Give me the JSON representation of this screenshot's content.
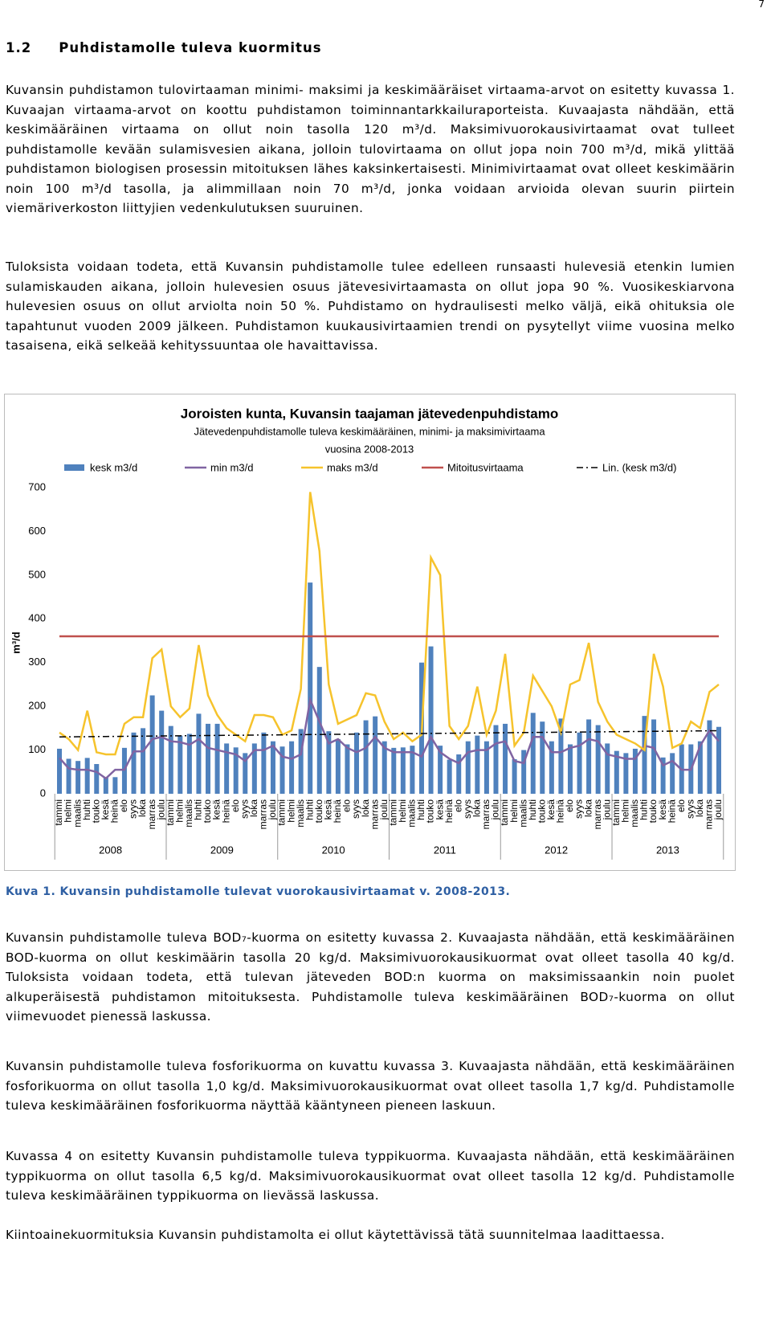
{
  "page_number": "7",
  "heading": {
    "number": "1.2",
    "title": "Puhdistamolle tuleva kuormitus"
  },
  "paragraphs": [
    "Kuvansin puhdistamon tulovirtaaman minimi- maksimi ja keskimääräiset virtaama-arvot on esitetty kuvassa 1. Kuvaajan virtaama-arvot on koottu puhdistamon toiminnantarkkailuraporteista. Kuvaajasta nähdään, että keskimääräinen virtaama on ollut noin tasolla 120 m³/d. Maksimivuorokausivirtaamat ovat tulleet puhdistamolle kevään sulamisvesien aikana, jolloin tulovirtaama on ollut jopa noin 700 m³/d, mikä ylittää puhdistamon biologisen prosessin mitoituksen lähes kaksinkertaisesti. Minimivirtaamat ovat olleet keskimäärin noin 100 m³/d tasolla, ja alimmillaan noin 70 m³/d, jonka voidaan arvioida olevan suurin piirtein viemäriverkoston liittyjien vedenkulutuksen suuruinen.",
    "Tuloksista voidaan todeta, että Kuvansin puhdistamolle tulee edelleen runsaasti hulevesiä etenkin lumien sulamiskauden aikana, jolloin hulevesien osuus jätevesivirtaamasta on ollut jopa 90 %. Vuosikeskiarvona hulevesien osuus on ollut arviolta noin 50 %. Puhdistamo on hydraulisesti melko väljä, eikä ohituksia ole tapahtunut vuoden 2009 jälkeen. Puhdistamon kuukausivirtaamien trendi on pysytellyt viime vuosina melko tasaisena, eikä selkeää kehityssuuntaa ole havaittavissa."
  ],
  "caption": "Kuva 1. Kuvansin puhdistamolle tulevat vuorokausivirtaamat v. 2008-2013.",
  "paragraphs_after": [
    "Kuvansin puhdistamolle tuleva BOD₇-kuorma on esitetty kuvassa 2. Kuvaajasta nähdään, että keskimääräinen BOD-kuorma on ollut keskimäärin tasolla 20 kg/d. Maksimivuorokausikuormat ovat olleet tasolla 40 kg/d. Tuloksista voidaan todeta, että tulevan jäteveden BOD:n kuorma on maksimissaankin noin puolet alkuperäisestä puhdistamon mitoituksesta. Puhdistamolle tuleva keskimääräinen BOD₇-kuorma on ollut viimevuodet pienessä laskussa.",
    "Kuvansin puhdistamolle tuleva fosforikuorma on kuvattu kuvassa 3. Kuvaajasta nähdään, että keskimääräinen fosforikuorma on ollut tasolla 1,0 kg/d. Maksimivuorokausikuormat ovat olleet tasolla 1,7 kg/d. Puhdistamolle tuleva keskimääräinen fosforikuorma näyttää kääntyneen pieneen laskuun.",
    "Kuvassa 4 on esitetty Kuvansin puhdistamolle tuleva typpikuorma. Kuvaajasta nähdään, että keskimääräinen typpikuorma on ollut tasolla 6,5 kg/d. Maksimivuorokausikuormat ovat olleet tasolla 12 kg/d. Puhdistamolle tuleva keskimääräinen typpikuorma on lievässä laskussa.",
    "Kiintoainekuormituksia Kuvansin puhdistamolta ei ollut käytettävissä tätä suunnitelmaa laadittaessa."
  ],
  "chart_data": {
    "type": "bar",
    "title": "Joroisten kunta, Kuvansin taajaman jätevedenpuhdistamo",
    "subtitle": [
      "Jätevedenpuhdistamolle tuleva keskimääräinen, minimi- ja maksimivirtaama",
      "vuosina 2008-2013"
    ],
    "y_label": "m³/d",
    "ylim": [
      0,
      700
    ],
    "yticks": [
      0,
      100,
      200,
      300,
      400,
      500,
      600,
      700
    ],
    "groups": [
      "2008",
      "2009",
      "2010",
      "2011",
      "2012",
      "2013"
    ],
    "categories": [
      "tammi",
      "helmi",
      "maalis",
      "huhti",
      "touko",
      "kesä",
      "heinä",
      "elo",
      "syys",
      "loka",
      "marras",
      "joulu",
      "tammi",
      "helmi",
      "maalis",
      "huhti",
      "touko",
      "kesä",
      "heinä",
      "elo",
      "syys",
      "loka",
      "marras",
      "joulu",
      "tammi",
      "helmi",
      "maalis",
      "huhti",
      "touko",
      "kesä",
      "heinä",
      "elo",
      "syys",
      "loka",
      "marras",
      "joulu",
      "tammi",
      "helmi",
      "maalis",
      "huhti",
      "touko",
      "kesä",
      "heinä",
      "elo",
      "syys",
      "loka",
      "marras",
      "joulu",
      "tammi",
      "helmi",
      "maalis",
      "huhti",
      "touko",
      "kesä",
      "heinä",
      "elo",
      "syys",
      "loka",
      "marras",
      "joulu",
      "tammi",
      "helmi",
      "maalis",
      "huhti",
      "touko",
      "kesä",
      "heinä",
      "elo",
      "syys",
      "loka",
      "marras",
      "joulu"
    ],
    "series": [
      {
        "name": "kesk m3/d",
        "type": "bar",
        "color": "#4f81bd",
        "values": [
          103,
          80,
          75,
          82,
          68,
          38,
          38,
          105,
          140,
          150,
          225,
          190,
          155,
          133,
          137,
          183,
          160,
          160,
          115,
          106,
          93,
          115,
          140,
          120,
          108,
          120,
          148,
          483,
          290,
          143,
          125,
          113,
          140,
          168,
          177,
          120,
          105,
          106,
          110,
          300,
          337,
          110,
          78,
          90,
          120,
          133,
          120,
          157,
          160,
          79,
          100,
          185,
          165,
          120,
          172,
          113,
          140,
          170,
          157,
          115,
          98,
          93,
          103,
          178,
          170,
          83,
          93,
          113,
          113,
          120,
          168,
          153
        ]
      },
      {
        "name": "min m3/d",
        "type": "line",
        "color": "#8064a2",
        "values": [
          82,
          58,
          55,
          55,
          50,
          35,
          55,
          55,
          97,
          97,
          125,
          130,
          120,
          118,
          112,
          125,
          105,
          100,
          95,
          90,
          75,
          100,
          100,
          110,
          85,
          80,
          90,
          215,
          165,
          115,
          125,
          105,
          95,
          105,
          130,
          105,
          95,
          95,
          95,
          85,
          130,
          95,
          80,
          70,
          95,
          100,
          100,
          115,
          120,
          75,
          70,
          130,
          130,
          95,
          95,
          105,
          110,
          125,
          120,
          90,
          85,
          80,
          80,
          110,
          105,
          65,
          75,
          55,
          55,
          110,
          145,
          120
        ]
      },
      {
        "name": "maks m3/d",
        "type": "line",
        "color": "#f6c32c",
        "values": [
          140,
          125,
          100,
          190,
          95,
          90,
          90,
          160,
          175,
          175,
          310,
          330,
          200,
          175,
          195,
          340,
          225,
          180,
          150,
          135,
          120,
          180,
          180,
          175,
          135,
          145,
          240,
          690,
          555,
          250,
          160,
          170,
          180,
          230,
          225,
          165,
          125,
          140,
          120,
          135,
          540,
          500,
          155,
          125,
          155,
          245,
          135,
          190,
          320,
          110,
          140,
          270,
          235,
          200,
          140,
          250,
          260,
          345,
          210,
          165,
          135,
          125,
          115,
          100,
          320,
          245,
          105,
          115,
          165,
          150,
          233,
          250
        ]
      },
      {
        "name": "Mitoitusvirtaama",
        "type": "line",
        "color": "#c0504d",
        "values": [
          360,
          360,
          360,
          360,
          360,
          360,
          360,
          360,
          360,
          360,
          360,
          360,
          360,
          360,
          360,
          360,
          360,
          360,
          360,
          360,
          360,
          360,
          360,
          360,
          360,
          360,
          360,
          360,
          360,
          360,
          360,
          360,
          360,
          360,
          360,
          360,
          360,
          360,
          360,
          360,
          360,
          360,
          360,
          360,
          360,
          360,
          360,
          360,
          360,
          360,
          360,
          360,
          360,
          360,
          360,
          360,
          360,
          360,
          360,
          360,
          360,
          360,
          360,
          360,
          360,
          360,
          360,
          360,
          360,
          360,
          360,
          360
        ]
      },
      {
        "name": "Lin. (kesk m3/d)",
        "type": "line",
        "dash": true,
        "color": "#000000",
        "values": [
          130,
          130.2,
          130.4,
          130.6,
          130.8,
          131,
          131.2,
          131.4,
          131.6,
          131.8,
          132,
          132.2,
          132.4,
          132.6,
          132.8,
          133,
          133.2,
          133.4,
          133.6,
          133.8,
          134,
          134.2,
          134.4,
          134.6,
          134.8,
          135,
          135.2,
          135.4,
          135.6,
          135.8,
          136,
          136.2,
          136.4,
          136.6,
          136.8,
          137,
          137.2,
          137.4,
          137.6,
          137.8,
          138,
          138.2,
          138.4,
          138.6,
          138.8,
          139,
          139.2,
          139.4,
          139.6,
          139.8,
          140,
          140.2,
          140.4,
          140.6,
          140.8,
          141,
          141.2,
          141.4,
          141.6,
          141.8,
          142,
          142.2,
          142.4,
          142.6,
          142.8,
          143,
          143.2,
          143.4,
          143.6,
          143.8,
          144,
          144.2
        ]
      }
    ]
  }
}
